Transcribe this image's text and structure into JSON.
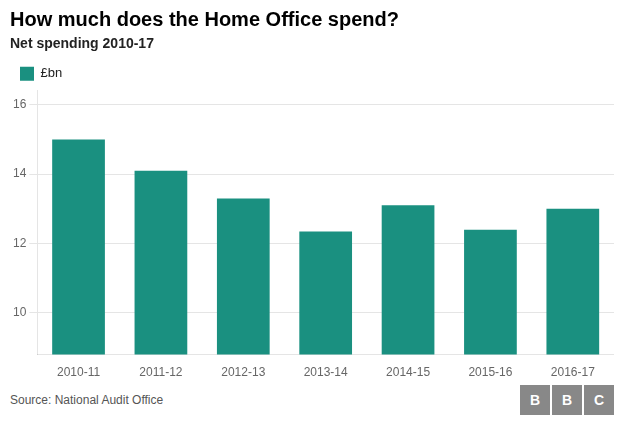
{
  "chart_data": {
    "type": "bar",
    "title": "How much does the Home Office spend?",
    "subtitle": "Net spending 2010-17",
    "categories": [
      "2010-11",
      "2011-12",
      "2012-13",
      "2013-14",
      "2014-15",
      "2015-16",
      "2016-17"
    ],
    "series": [
      {
        "name": "£bn",
        "color": "#1a9080",
        "values": [
          15.0,
          14.1,
          13.3,
          12.35,
          13.1,
          12.4,
          13.0
        ]
      }
    ],
    "ylim": [
      8.8,
      16.4
    ],
    "yticks": [
      10,
      12,
      14,
      16
    ],
    "grid": true,
    "legend": "upper left",
    "annotations": [
      "Source: National Audit Office",
      "BBC"
    ]
  }
}
